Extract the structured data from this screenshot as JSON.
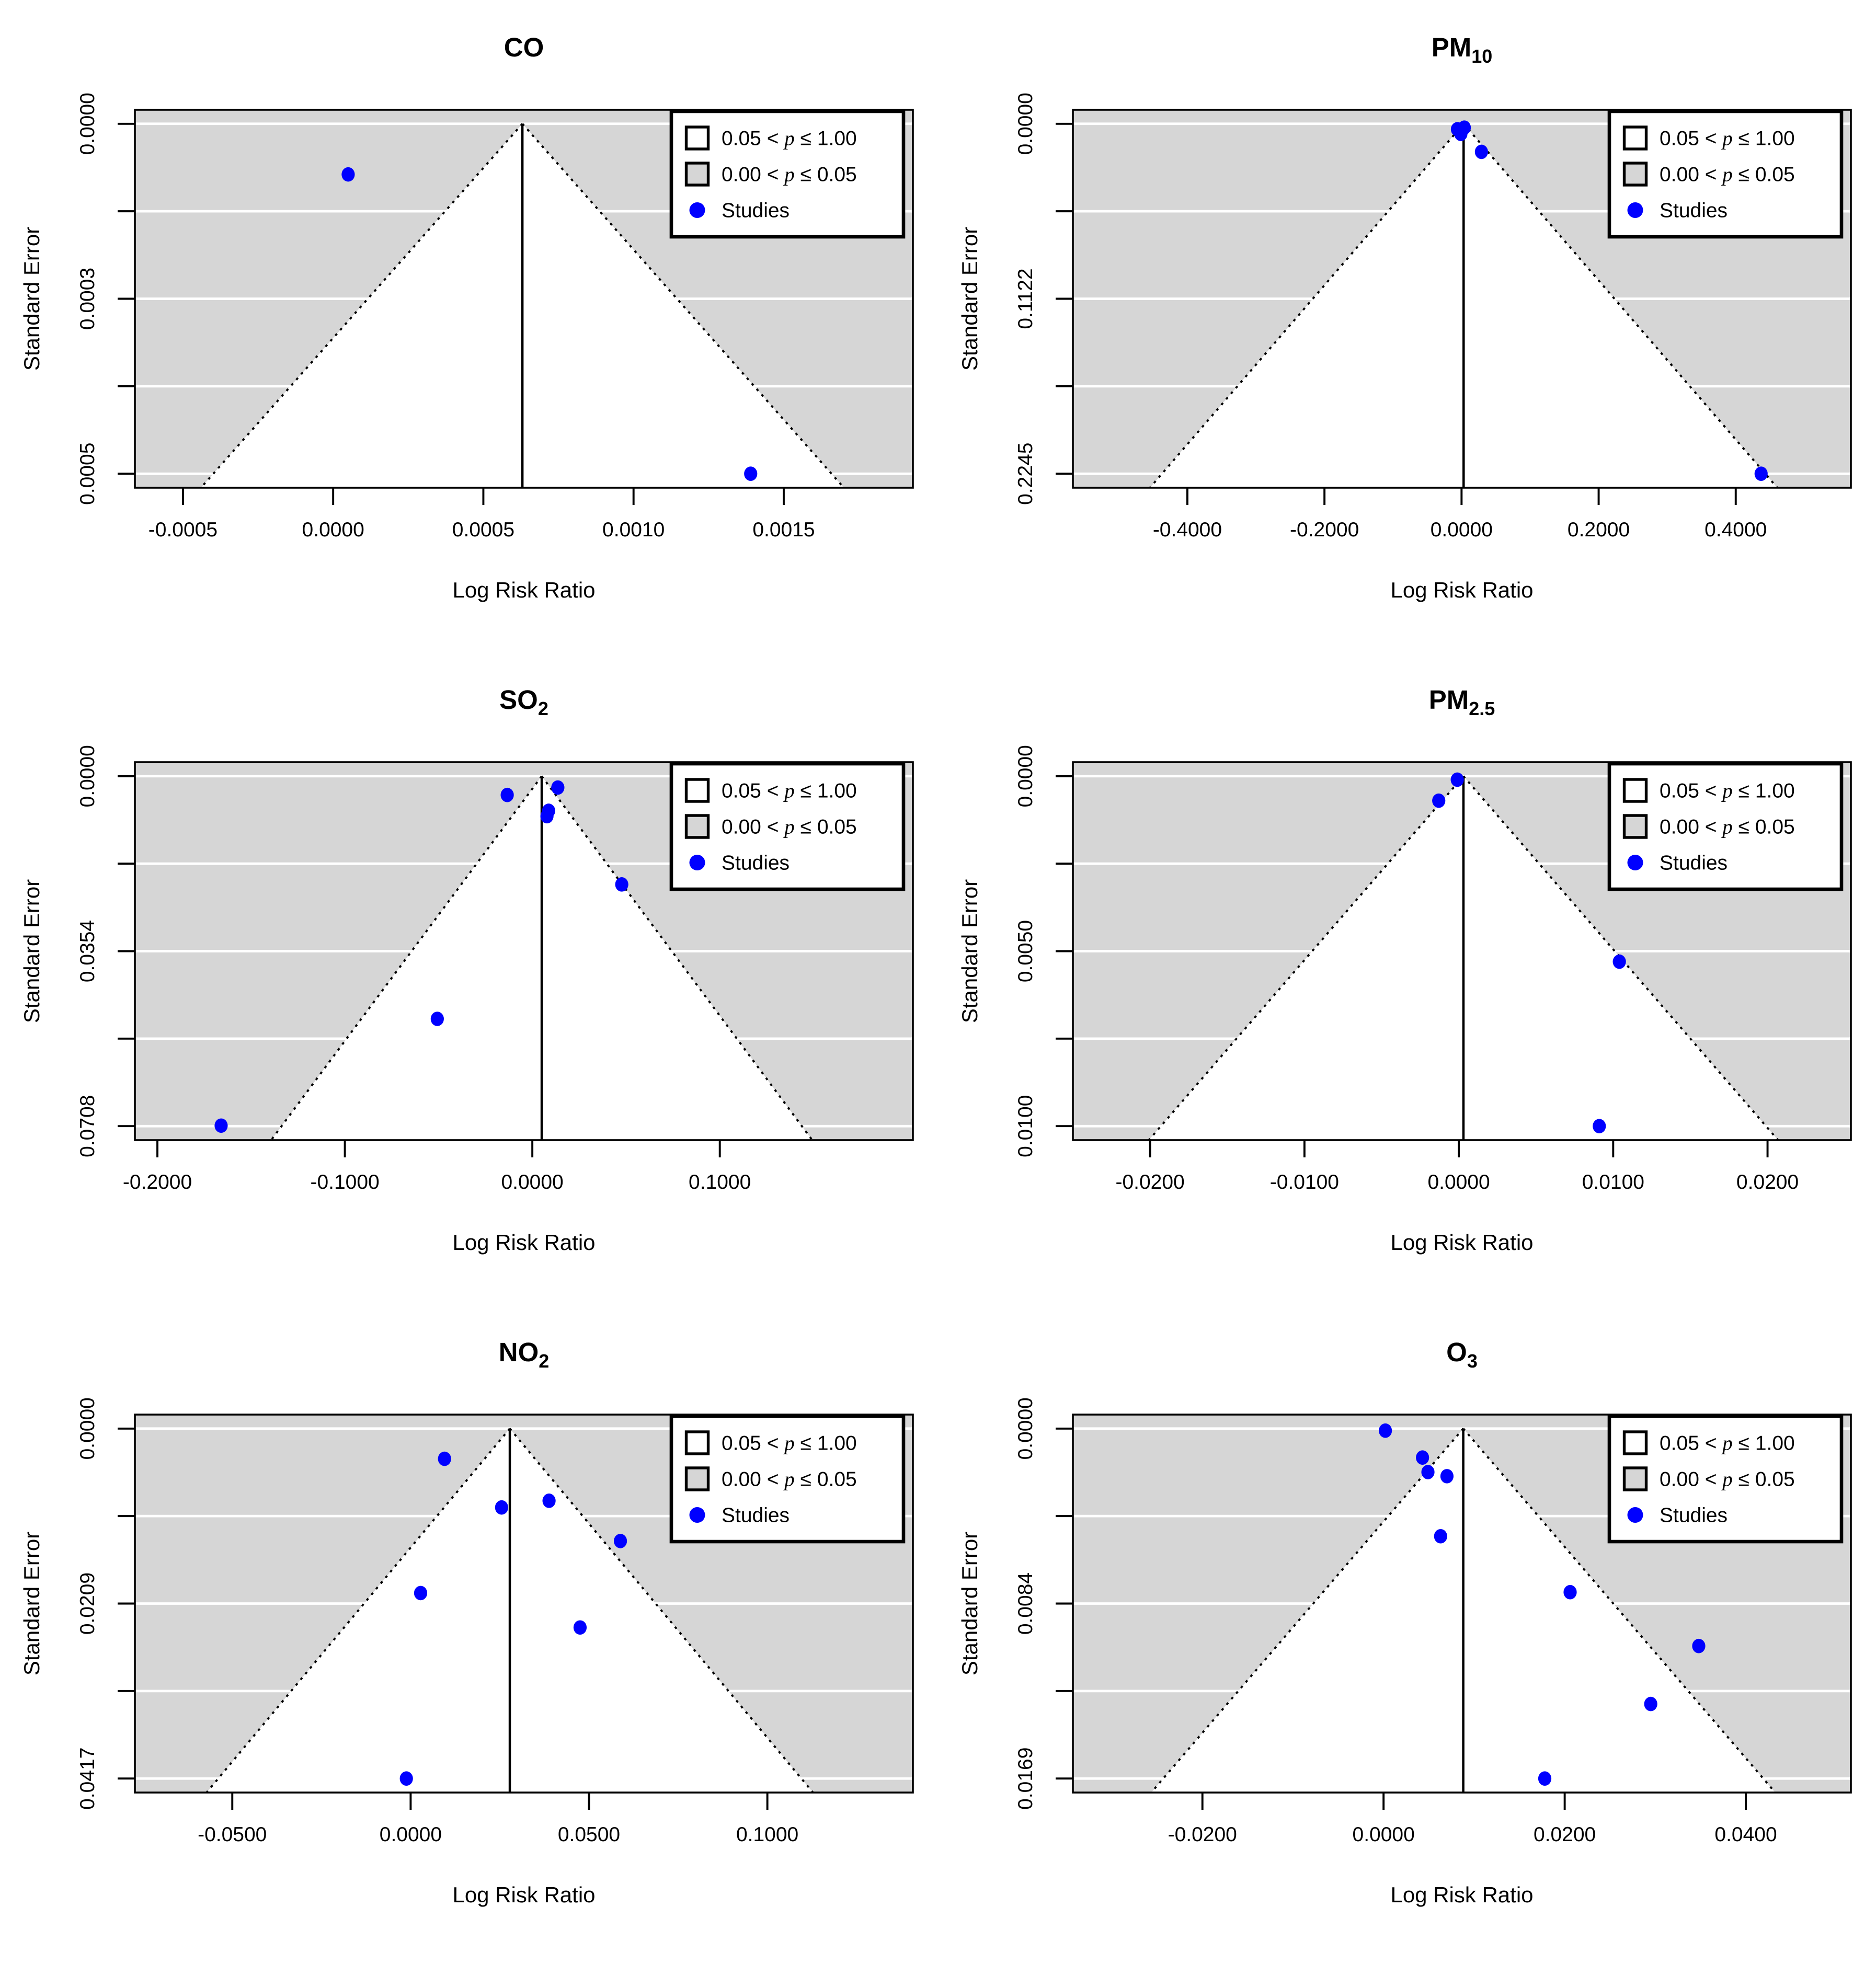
{
  "figure": {
    "background": "#ffffff",
    "colors": {
      "panel_shade": "#d6d6d6",
      "funnel_fill": "#ffffff",
      "gridline": "#ffffff",
      "study_point": "#0000ff",
      "line": "#000000"
    }
  },
  "legend": {
    "items": [
      {
        "swatch": "open-square",
        "pre": "0.05 < ",
        "var": "p",
        "post": " ≤ 1.00"
      },
      {
        "swatch": "shaded-square",
        "pre": "0.00 < ",
        "var": "p",
        "post": " ≤ 0.05"
      },
      {
        "swatch": "blue-dot",
        "pre": "Studies",
        "var": "",
        "post": ""
      }
    ]
  },
  "chart_data": {
    "type": "scatter",
    "subtype": "funnel-plot-grid",
    "layout": "2 columns x 3 rows",
    "ci_z": 1.96,
    "shared": {
      "xlabel": "Log Risk Ratio",
      "ylabel": "Standard Error",
      "y_axis_direction": "standard error increases downward, 5 evenly spaced ticks, labels on 1st/3rd/5th",
      "grid": "white horizontal gridlines on shaded panel"
    },
    "plots": [
      {
        "id": "co",
        "title": {
          "main": "CO",
          "sub": ""
        },
        "estimate": 0.00063,
        "se_max": 0.000525,
        "se_tick_labels": [
          "0.0000",
          "0.0003",
          "0.0005"
        ],
        "xlim": [
          -0.00066,
          0.00193
        ],
        "x_ticks": [
          {
            "v": -0.0005,
            "label": "-0.0005"
          },
          {
            "v": 0.0,
            "label": "0.0000"
          },
          {
            "v": 0.0005,
            "label": "0.0005"
          },
          {
            "v": 0.001,
            "label": "0.0010"
          },
          {
            "v": 0.0015,
            "label": "0.0015"
          }
        ],
        "studies": [
          {
            "x": 5e-05,
            "se": 7.6e-05
          },
          {
            "x": 0.00139,
            "se": 0.000525
          }
        ]
      },
      {
        "id": "pm10",
        "title": {
          "main": "PM",
          "sub": "10"
        },
        "estimate": 0.003,
        "se_max": 0.2245,
        "se_tick_labels": [
          "0.0000",
          "0.1122",
          "0.2245"
        ],
        "xlim": [
          -0.567,
          0.568
        ],
        "x_ticks": [
          {
            "v": -0.4,
            "label": "-0.4000"
          },
          {
            "v": -0.2,
            "label": "-0.2000"
          },
          {
            "v": 0.0,
            "label": "0.0000"
          },
          {
            "v": 0.2,
            "label": "0.2000"
          },
          {
            "v": 0.4,
            "label": "0.4000"
          }
        ],
        "studies": [
          {
            "x": -0.006,
            "se": 0.0035
          },
          {
            "x": 0.004,
            "se": 0.0025
          },
          {
            "x": -0.001,
            "se": 0.0065
          },
          {
            "x": 0.029,
            "se": 0.018
          },
          {
            "x": 0.437,
            "se": 0.2245
          }
        ]
      },
      {
        "id": "so2",
        "title": {
          "main": "SO",
          "sub": "2"
        },
        "estimate": 0.005,
        "se_max": 0.0708,
        "se_tick_labels": [
          "0.0000",
          "0.0354",
          "0.0708"
        ],
        "xlim": [
          -0.212,
          0.203
        ],
        "x_ticks": [
          {
            "v": -0.2,
            "label": "-0.2000"
          },
          {
            "v": -0.1,
            "label": "-0.1000"
          },
          {
            "v": 0.0,
            "label": "0.0000"
          },
          {
            "v": 0.1,
            "label": "0.1000"
          }
        ],
        "studies": [
          {
            "x": -0.0134,
            "se": 0.0038
          },
          {
            "x": 0.0136,
            "se": 0.0023
          },
          {
            "x": 0.0087,
            "se": 0.007
          },
          {
            "x": 0.0078,
            "se": 0.0081
          },
          {
            "x": 0.0477,
            "se": 0.0219
          },
          {
            "x": -0.0507,
            "se": 0.0491
          },
          {
            "x": -0.166,
            "se": 0.0707
          }
        ]
      },
      {
        "id": "pm25",
        "title": {
          "main": "PM",
          "sub": "2.5"
        },
        "estimate": 0.0003,
        "se_max": 0.01,
        "se_tick_labels": [
          "0.0000",
          "0.0050",
          "0.0100"
        ],
        "xlim": [
          -0.025,
          0.0254
        ],
        "x_ticks": [
          {
            "v": -0.02,
            "label": "-0.0200"
          },
          {
            "v": -0.01,
            "label": "-0.0100"
          },
          {
            "v": 0.0,
            "label": "0.0000"
          },
          {
            "v": 0.01,
            "label": "0.0100"
          },
          {
            "v": 0.02,
            "label": "0.0200"
          }
        ],
        "studies": [
          {
            "x": -0.0001,
            "se": 0.0001
          },
          {
            "x": -0.0013,
            "se": 0.0007
          },
          {
            "x": 0.0104,
            "se": 0.0053
          },
          {
            "x": 0.0091,
            "se": 0.01
          }
        ]
      },
      {
        "id": "no2",
        "title": {
          "main": "NO",
          "sub": "2"
        },
        "estimate": 0.0278,
        "se_max": 0.0417,
        "se_tick_labels": [
          "0.0000",
          "0.0209",
          "0.0417"
        ],
        "xlim": [
          -0.0773,
          0.1408
        ],
        "x_ticks": [
          {
            "v": -0.05,
            "label": "-0.0500"
          },
          {
            "v": 0.0,
            "label": "0.0000"
          },
          {
            "v": 0.05,
            "label": "0.0500"
          },
          {
            "v": 0.1,
            "label": "0.1000"
          }
        ],
        "studies": [
          {
            "x": 0.0095,
            "se": 0.0036
          },
          {
            "x": 0.0255,
            "se": 0.0094
          },
          {
            "x": 0.0388,
            "se": 0.0086
          },
          {
            "x": 0.0588,
            "se": 0.0134
          },
          {
            "x": 0.0028,
            "se": 0.0196
          },
          {
            "x": 0.0475,
            "se": 0.0237
          },
          {
            "x": -0.0012,
            "se": 0.0417
          }
        ]
      },
      {
        "id": "o3",
        "title": {
          "main": "O",
          "sub": "3"
        },
        "estimate": 0.0088,
        "se_max": 0.0169,
        "se_tick_labels": [
          "0.0000",
          "0.0084",
          "0.0169"
        ],
        "xlim": [
          -0.0343,
          0.0516
        ],
        "x_ticks": [
          {
            "v": -0.02,
            "label": "-0.0200"
          },
          {
            "v": 0.0,
            "label": "0.0000"
          },
          {
            "v": 0.02,
            "label": "0.0200"
          },
          {
            "v": 0.04,
            "label": "0.0400"
          }
        ],
        "studies": [
          {
            "x": 0.0002,
            "se": 0.0001
          },
          {
            "x": 0.0043,
            "se": 0.0014
          },
          {
            "x": 0.0049,
            "se": 0.0021
          },
          {
            "x": 0.007,
            "se": 0.0023
          },
          {
            "x": 0.0063,
            "se": 0.0052
          },
          {
            "x": 0.0206,
            "se": 0.0079
          },
          {
            "x": 0.0348,
            "se": 0.0105
          },
          {
            "x": 0.0295,
            "se": 0.0133
          },
          {
            "x": 0.0178,
            "se": 0.0169
          }
        ]
      }
    ]
  }
}
